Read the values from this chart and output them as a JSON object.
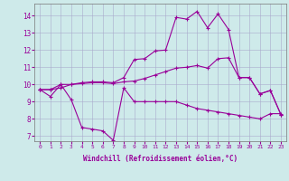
{
  "xlabel": "Windchill (Refroidissement éolien,°C)",
  "background_color": "#ceeaea",
  "line_color": "#990099",
  "xlim": [
    -0.5,
    23.5
  ],
  "ylim": [
    6.7,
    14.7
  ],
  "yticks": [
    7,
    8,
    9,
    10,
    11,
    12,
    13,
    14
  ],
  "xticks": [
    0,
    1,
    2,
    3,
    4,
    5,
    6,
    7,
    8,
    9,
    10,
    11,
    12,
    13,
    14,
    15,
    16,
    17,
    18,
    19,
    20,
    21,
    22,
    23
  ],
  "line1_x": [
    0,
    1,
    2,
    3,
    4,
    5,
    6,
    7,
    8,
    9,
    10,
    11,
    12,
    13,
    14,
    15,
    16,
    17,
    18,
    19,
    20,
    21,
    22,
    23
  ],
  "line1_y": [
    9.7,
    9.3,
    10.0,
    9.1,
    7.5,
    7.4,
    7.3,
    6.75,
    9.8,
    9.0,
    9.0,
    9.0,
    9.0,
    9.0,
    8.8,
    8.6,
    8.5,
    8.4,
    8.3,
    8.2,
    8.1,
    8.0,
    8.3,
    8.3
  ],
  "line2_x": [
    0,
    1,
    2,
    3,
    4,
    5,
    6,
    7,
    8,
    9,
    10,
    11,
    12,
    13,
    14,
    15,
    16,
    17,
    18,
    19,
    20,
    21,
    22,
    23
  ],
  "line2_y": [
    9.7,
    9.7,
    9.8,
    10.0,
    10.05,
    10.1,
    10.1,
    10.05,
    10.15,
    10.2,
    10.35,
    10.55,
    10.75,
    10.95,
    11.0,
    11.1,
    10.95,
    11.5,
    11.55,
    10.4,
    10.4,
    9.45,
    9.65,
    8.25
  ],
  "line3_x": [
    0,
    1,
    2,
    3,
    4,
    5,
    6,
    7,
    8,
    9,
    10,
    11,
    12,
    13,
    14,
    15,
    16,
    17,
    18,
    19,
    20,
    21,
    22,
    23
  ],
  "line3_y": [
    9.7,
    9.7,
    10.0,
    10.0,
    10.1,
    10.15,
    10.15,
    10.1,
    10.4,
    11.45,
    11.5,
    11.95,
    12.0,
    13.9,
    13.8,
    14.25,
    13.3,
    14.1,
    13.2,
    10.4,
    10.4,
    9.45,
    9.65,
    8.25
  ]
}
